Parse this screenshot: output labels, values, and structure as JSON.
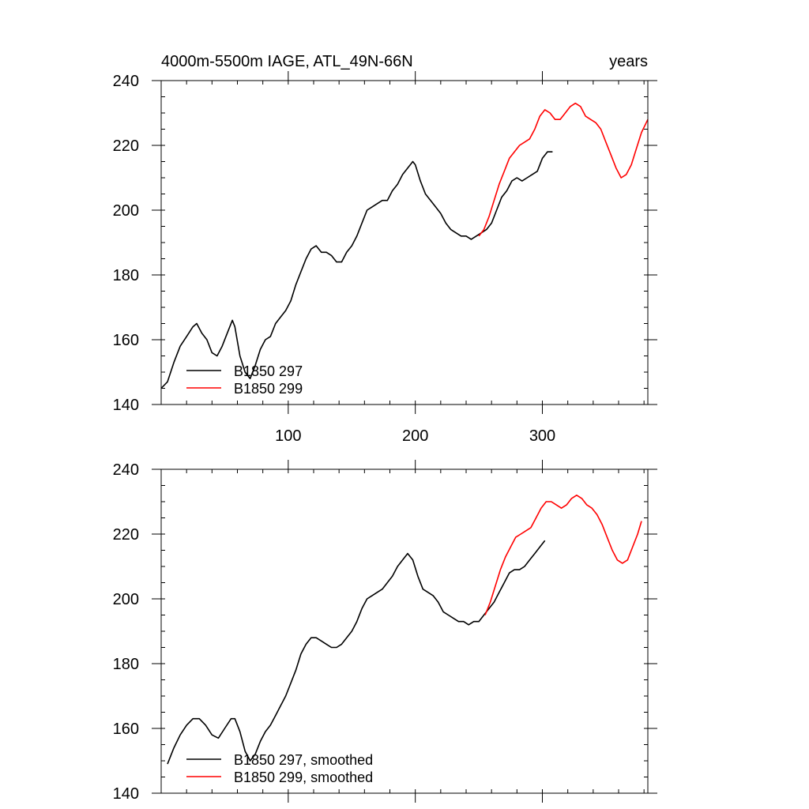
{
  "chart_data": [
    {
      "type": "line",
      "title": "4000m-5500m IAGE, ATL_49N-66N",
      "title_right": "years",
      "xlabel": "",
      "ylabel": "",
      "xlim": [
        0,
        383
      ],
      "ylim": [
        140,
        240
      ],
      "x_ticks": [
        100,
        200,
        300
      ],
      "x_tick_labels": [
        "100",
        "200",
        "300"
      ],
      "y_ticks": [
        140,
        160,
        180,
        200,
        220,
        240
      ],
      "y_tick_labels": [
        "140",
        "160",
        "180",
        "200",
        "220",
        "240"
      ],
      "grid": false,
      "legend_position": "bottom-left",
      "series": [
        {
          "name": "B1850 297",
          "color": "#000000",
          "points": [
            [
              0,
              145
            ],
            [
              5,
              147
            ],
            [
              10,
              153
            ],
            [
              15,
              158
            ],
            [
              20,
              161
            ],
            [
              25,
              164
            ],
            [
              28,
              165
            ],
            [
              32,
              162
            ],
            [
              36,
              160
            ],
            [
              40,
              156
            ],
            [
              44,
              155
            ],
            [
              48,
              158
            ],
            [
              52,
              162
            ],
            [
              56,
              166
            ],
            [
              58,
              164
            ],
            [
              62,
              155
            ],
            [
              66,
              150
            ],
            [
              70,
              148
            ],
            [
              74,
              152
            ],
            [
              78,
              157
            ],
            [
              82,
              160
            ],
            [
              86,
              161
            ],
            [
              90,
              165
            ],
            [
              94,
              167
            ],
            [
              98,
              169
            ],
            [
              102,
              172
            ],
            [
              106,
              177
            ],
            [
              110,
              181
            ],
            [
              114,
              185
            ],
            [
              118,
              188
            ],
            [
              122,
              189
            ],
            [
              126,
              187
            ],
            [
              130,
              187
            ],
            [
              134,
              186
            ],
            [
              138,
              184
            ],
            [
              142,
              184
            ],
            [
              146,
              187
            ],
            [
              150,
              189
            ],
            [
              154,
              192
            ],
            [
              158,
              196
            ],
            [
              162,
              200
            ],
            [
              166,
              201
            ],
            [
              170,
              202
            ],
            [
              174,
              203
            ],
            [
              178,
              203
            ],
            [
              182,
              206
            ],
            [
              186,
              208
            ],
            [
              190,
              211
            ],
            [
              194,
              213
            ],
            [
              198,
              215
            ],
            [
              200,
              214
            ],
            [
              204,
              209
            ],
            [
              208,
              205
            ],
            [
              212,
              203
            ],
            [
              216,
              201
            ],
            [
              220,
              199
            ],
            [
              224,
              196
            ],
            [
              228,
              194
            ],
            [
              232,
              193
            ],
            [
              236,
              192
            ],
            [
              240,
              192
            ],
            [
              244,
              191
            ],
            [
              248,
              192
            ],
            [
              252,
              193
            ],
            [
              256,
              194
            ],
            [
              260,
              196
            ],
            [
              264,
              200
            ],
            [
              268,
              204
            ],
            [
              272,
              206
            ],
            [
              276,
              209
            ],
            [
              280,
              210
            ],
            [
              284,
              209
            ],
            [
              288,
              210
            ],
            [
              292,
              211
            ],
            [
              296,
              212
            ],
            [
              300,
              216
            ],
            [
              304,
              218
            ],
            [
              308,
              218
            ]
          ]
        },
        {
          "name": "B1850 299",
          "color": "#ff0000",
          "points": [
            [
              250,
              192
            ],
            [
              254,
              194
            ],
            [
              258,
              198
            ],
            [
              262,
              203
            ],
            [
              266,
              208
            ],
            [
              270,
              212
            ],
            [
              274,
              216
            ],
            [
              278,
              218
            ],
            [
              282,
              220
            ],
            [
              286,
              221
            ],
            [
              290,
              222
            ],
            [
              294,
              225
            ],
            [
              298,
              229
            ],
            [
              302,
              231
            ],
            [
              306,
              230
            ],
            [
              310,
              228
            ],
            [
              314,
              228
            ],
            [
              318,
              230
            ],
            [
              322,
              232
            ],
            [
              326,
              233
            ],
            [
              330,
              232
            ],
            [
              334,
              229
            ],
            [
              338,
              228
            ],
            [
              342,
              227
            ],
            [
              346,
              225
            ],
            [
              350,
              221
            ],
            [
              354,
              217
            ],
            [
              358,
              213
            ],
            [
              362,
              210
            ],
            [
              366,
              211
            ],
            [
              370,
              214
            ],
            [
              374,
              219
            ],
            [
              378,
              224
            ],
            [
              383,
              228
            ]
          ]
        }
      ]
    },
    {
      "type": "line",
      "title": "",
      "xlabel": "",
      "ylabel": "",
      "xlim": [
        0,
        383
      ],
      "ylim": [
        140,
        240
      ],
      "x_ticks": [
        100,
        200,
        300
      ],
      "x_tick_labels": [],
      "y_ticks": [
        140,
        160,
        180,
        200,
        220,
        240
      ],
      "y_tick_labels": [
        "140",
        "160",
        "180",
        "200",
        "220",
        "240"
      ],
      "grid": false,
      "legend_position": "bottom-left",
      "series": [
        {
          "name": "B1850 297, smoothed",
          "color": "#000000",
          "points": [
            [
              5,
              149
            ],
            [
              10,
              154
            ],
            [
              15,
              158
            ],
            [
              20,
              161
            ],
            [
              25,
              163
            ],
            [
              30,
              163
            ],
            [
              35,
              161
            ],
            [
              40,
              158
            ],
            [
              45,
              157
            ],
            [
              50,
              160
            ],
            [
              55,
              163
            ],
            [
              58,
              163
            ],
            [
              62,
              159
            ],
            [
              66,
              153
            ],
            [
              70,
              150
            ],
            [
              74,
              152
            ],
            [
              78,
              156
            ],
            [
              82,
              159
            ],
            [
              86,
              161
            ],
            [
              90,
              164
            ],
            [
              94,
              167
            ],
            [
              98,
              170
            ],
            [
              102,
              174
            ],
            [
              106,
              178
            ],
            [
              110,
              183
            ],
            [
              114,
              186
            ],
            [
              118,
              188
            ],
            [
              122,
              188
            ],
            [
              126,
              187
            ],
            [
              130,
              186
            ],
            [
              134,
              185
            ],
            [
              138,
              185
            ],
            [
              142,
              186
            ],
            [
              146,
              188
            ],
            [
              150,
              190
            ],
            [
              154,
              193
            ],
            [
              158,
              197
            ],
            [
              162,
              200
            ],
            [
              166,
              201
            ],
            [
              170,
              202
            ],
            [
              174,
              203
            ],
            [
              178,
              205
            ],
            [
              182,
              207
            ],
            [
              186,
              210
            ],
            [
              190,
              212
            ],
            [
              194,
              214
            ],
            [
              198,
              212
            ],
            [
              202,
              207
            ],
            [
              206,
              203
            ],
            [
              210,
              202
            ],
            [
              214,
              201
            ],
            [
              218,
              199
            ],
            [
              222,
              196
            ],
            [
              226,
              195
            ],
            [
              230,
              194
            ],
            [
              234,
              193
            ],
            [
              238,
              193
            ],
            [
              242,
              192
            ],
            [
              246,
              193
            ],
            [
              250,
              193
            ],
            [
              254,
              195
            ],
            [
              258,
              197
            ],
            [
              262,
              199
            ],
            [
              266,
              202
            ],
            [
              270,
              205
            ],
            [
              274,
              208
            ],
            [
              278,
              209
            ],
            [
              282,
              209
            ],
            [
              286,
              210
            ],
            [
              290,
              212
            ],
            [
              294,
              214
            ],
            [
              298,
              216
            ],
            [
              302,
              218
            ]
          ]
        },
        {
          "name": "B1850 299, smoothed",
          "color": "#ff0000",
          "points": [
            [
              255,
              195
            ],
            [
              259,
              199
            ],
            [
              263,
              204
            ],
            [
              267,
              209
            ],
            [
              271,
              213
            ],
            [
              275,
              216
            ],
            [
              279,
              219
            ],
            [
              283,
              220
            ],
            [
              287,
              221
            ],
            [
              291,
              222
            ],
            [
              295,
              225
            ],
            [
              299,
              228
            ],
            [
              303,
              230
            ],
            [
              307,
              230
            ],
            [
              311,
              229
            ],
            [
              315,
              228
            ],
            [
              319,
              229
            ],
            [
              323,
              231
            ],
            [
              327,
              232
            ],
            [
              331,
              231
            ],
            [
              335,
              229
            ],
            [
              339,
              228
            ],
            [
              343,
              226
            ],
            [
              347,
              223
            ],
            [
              351,
              219
            ],
            [
              355,
              215
            ],
            [
              359,
              212
            ],
            [
              363,
              211
            ],
            [
              367,
              212
            ],
            [
              371,
              216
            ],
            [
              375,
              220
            ],
            [
              378,
              224
            ]
          ]
        }
      ]
    }
  ]
}
